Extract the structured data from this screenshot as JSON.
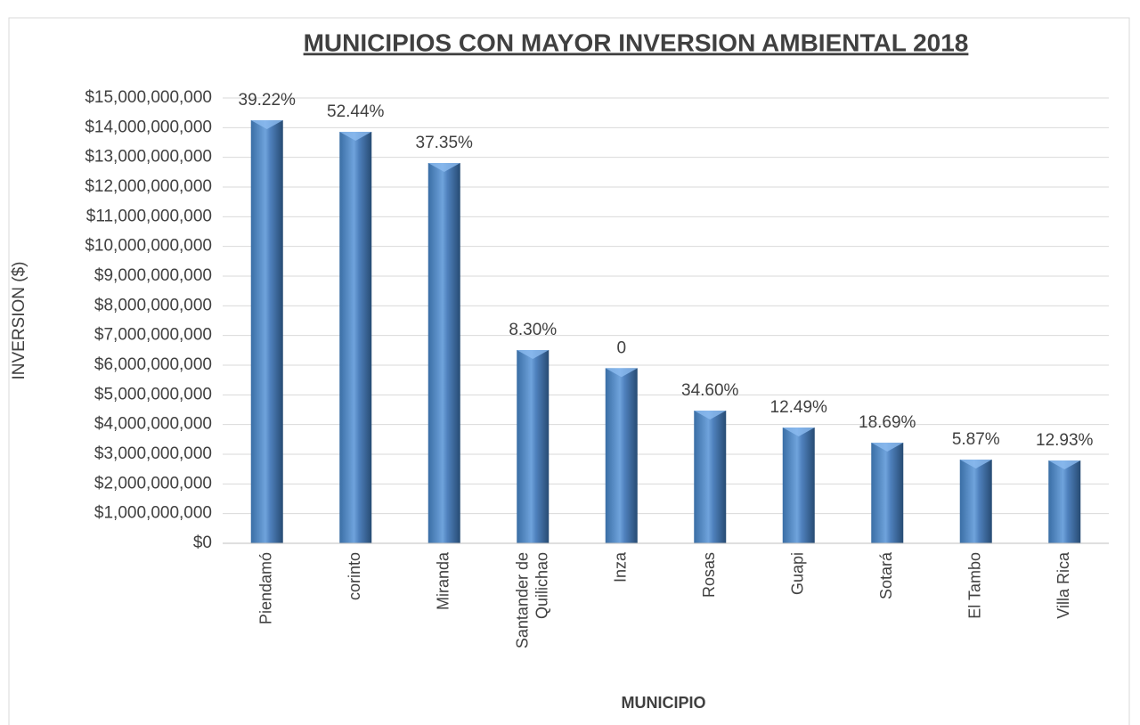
{
  "chart_data": {
    "type": "bar",
    "title": "MUNICIPIOS CON MAYOR INVERSION AMBIENTAL 2018",
    "x_label": "MUNICIPIO",
    "y_label": "INVERSION ($)",
    "categories": [
      "Piendamó",
      "corinto",
      "Miranda",
      "Santander de Quilichao",
      "Inza",
      "Rosas",
      "Guapi",
      "Sotará",
      "El Tambo",
      "Villa Rica"
    ],
    "values": [
      14250000000,
      13860000000,
      12810000000,
      6510000000,
      5900000000,
      4470000000,
      3900000000,
      3390000000,
      2820000000,
      2790000000
    ],
    "bar_labels": [
      "39.22%",
      "52.44%",
      "37.35%",
      "8.30%",
      "0",
      "34.60%",
      "12.49%",
      "18.69%",
      "5.87%",
      "12.93%"
    ],
    "color": "#4f81bd",
    "ylim": [
      0,
      15000000000
    ],
    "yticks": [
      {
        "value": 0,
        "label": "$0"
      },
      {
        "value": 1000000000,
        "label": "$1,000,000,000"
      },
      {
        "value": 2000000000,
        "label": "$2,000,000,000"
      },
      {
        "value": 3000000000,
        "label": "$3,000,000,000"
      },
      {
        "value": 4000000000,
        "label": "$4,000,000,000"
      },
      {
        "value": 5000000000,
        "label": "$5,000,000,000"
      },
      {
        "value": 6000000000,
        "label": "$6,000,000,000"
      },
      {
        "value": 7000000000,
        "label": "$7,000,000,000"
      },
      {
        "value": 8000000000,
        "label": "$8,000,000,000"
      },
      {
        "value": 9000000000,
        "label": "$9,000,000,000"
      },
      {
        "value": 10000000000,
        "label": "$10,000,000,000"
      },
      {
        "value": 11000000000,
        "label": "$11,000,000,000"
      },
      {
        "value": 12000000000,
        "label": "$12,000,000,000"
      },
      {
        "value": 13000000000,
        "label": "$13,000,000,000"
      },
      {
        "value": 14000000000,
        "label": "$14,000,000,000"
      },
      {
        "value": 15000000000,
        "label": "$15,000,000,000"
      }
    ],
    "grid": true
  }
}
